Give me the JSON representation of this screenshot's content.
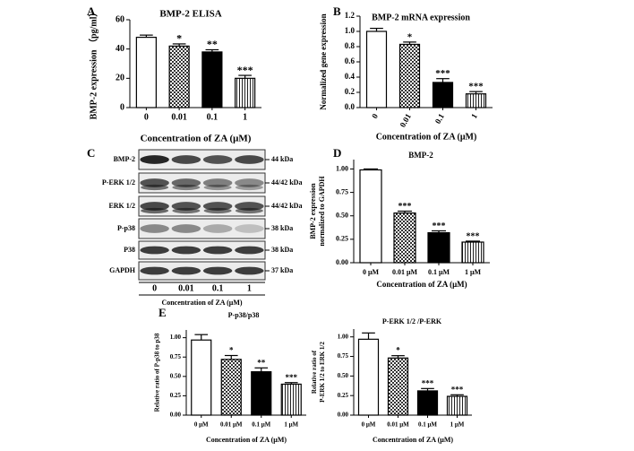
{
  "chart_data": [
    {
      "type": "bar",
      "label": "A",
      "title": "BMP-2 ELISA",
      "y_label": "BMP-2 expression （pg/ml）",
      "x_label": "Concentration of ZA (μM)",
      "categories": [
        "0",
        "0.01",
        "0.1",
        "1"
      ],
      "values": [
        48,
        42,
        38,
        20
      ],
      "errors": [
        1.5,
        1.5,
        1.5,
        2
      ],
      "significance": [
        null,
        "*",
        "**",
        "***"
      ],
      "fills": [
        "white",
        "checker",
        "black",
        "stripes"
      ],
      "ylim": [
        0,
        60
      ],
      "yticks": [
        0,
        20,
        40,
        60
      ]
    },
    {
      "type": "bar",
      "label": "B",
      "title": "BMP-2 mRNA expression",
      "y_label": "Normalized gene expression",
      "x_label": "Concentration of ZA (μM)",
      "categories": [
        "0",
        "0.01",
        "0.1",
        "1"
      ],
      "values": [
        1.0,
        0.83,
        0.33,
        0.18
      ],
      "errors": [
        0.04,
        0.03,
        0.05,
        0.03
      ],
      "significance": [
        null,
        "*",
        "***",
        "***"
      ],
      "fills": [
        "white",
        "checker",
        "black",
        "stripes"
      ],
      "ylim": [
        0,
        1.2
      ],
      "yticks": [
        {
          "value": 0,
          "label": "0.0"
        },
        0.2,
        0.4,
        0.6,
        0.8,
        {
          "value": 1,
          "label": "1.0"
        },
        1.2
      ]
    },
    {
      "type": "bar",
      "label": "D",
      "title": "BMP-2",
      "y_label": [
        "BMP-2 expression",
        "normalized to GAPDH"
      ],
      "x_label": "Concentration of ZA (μM)",
      "categories": [
        "0 μM",
        "0.01 μM",
        "0.1 μM",
        "1 μM"
      ],
      "values": [
        0.99,
        0.53,
        0.32,
        0.22
      ],
      "errors": [
        0.01,
        0.02,
        0.02,
        0.01
      ],
      "significance": [
        null,
        "***",
        "***",
        "***"
      ],
      "fills": [
        "white",
        "checker",
        "black",
        "stripes"
      ],
      "ylim": [
        0,
        1.1
      ],
      "yticks": [
        {
          "value": 0,
          "label": "0.00"
        },
        0.25,
        {
          "value": 0.5,
          "label": "0.50"
        },
        0.75,
        {
          "value": 1,
          "label": "1.00"
        }
      ]
    },
    {
      "type": "bar",
      "label": "E",
      "title": "P-p38/p38",
      "y_label": [
        "Relative ratio of P-p38 to p38"
      ],
      "x_label": "Concentration of ZA (μM)",
      "categories": [
        "0 μM",
        "0.01 μM",
        "0.1 μM",
        "1 μM"
      ],
      "values": [
        0.97,
        0.72,
        0.56,
        0.4
      ],
      "errors": [
        0.07,
        0.05,
        0.05,
        0.02
      ],
      "significance": [
        null,
        "*",
        "**",
        "***"
      ],
      "fills": [
        "white",
        "checker",
        "black",
        "stripes"
      ],
      "ylim": [
        0,
        1.1
      ],
      "yticks": [
        {
          "value": 0,
          "label": "0.00"
        },
        0.25,
        {
          "value": 0.5,
          "label": "0.50"
        },
        0.75,
        {
          "value": 1,
          "label": "1.00"
        }
      ]
    },
    {
      "type": "bar",
      "title": "P-ERK 1/2 /P-ERK",
      "y_label": [
        "Relative ratio of",
        "P-ERK 1/2 to ERK 1/2"
      ],
      "x_label": "Concentration of ZA (μM)",
      "categories": [
        "0 μM",
        "0.01 μM",
        "0.1 μM",
        "1 μM"
      ],
      "values": [
        0.97,
        0.73,
        0.31,
        0.24
      ],
      "errors": [
        0.08,
        0.03,
        0.03,
        0.02
      ],
      "significance": [
        null,
        "*",
        "***",
        "***"
      ],
      "fills": [
        "white",
        "checker",
        "black",
        "stripes"
      ],
      "ylim": [
        0,
        1.1
      ],
      "yticks": [
        {
          "value": 0,
          "label": "0.00"
        },
        0.25,
        {
          "value": 0.5,
          "label": "0.50"
        },
        0.75,
        {
          "value": 1,
          "label": "1.00"
        }
      ]
    }
  ],
  "blot": {
    "label": "C",
    "rows": [
      {
        "name": "BMP-2",
        "size": "44 kDa"
      },
      {
        "name": "P-ERK 1/2",
        "size": "44/42 kDa"
      },
      {
        "name": "ERK 1/2",
        "size": "44/42 kDa"
      },
      {
        "name": "P-p38",
        "size": "38 kDa"
      },
      {
        "name": "P38",
        "size": "38 kDa"
      },
      {
        "name": "GAPDH",
        "size": "37 kDa"
      }
    ],
    "lanes": [
      "0",
      "0.01",
      "0.1",
      "1"
    ],
    "x_label": "Concentration of ZA (μM)"
  }
}
